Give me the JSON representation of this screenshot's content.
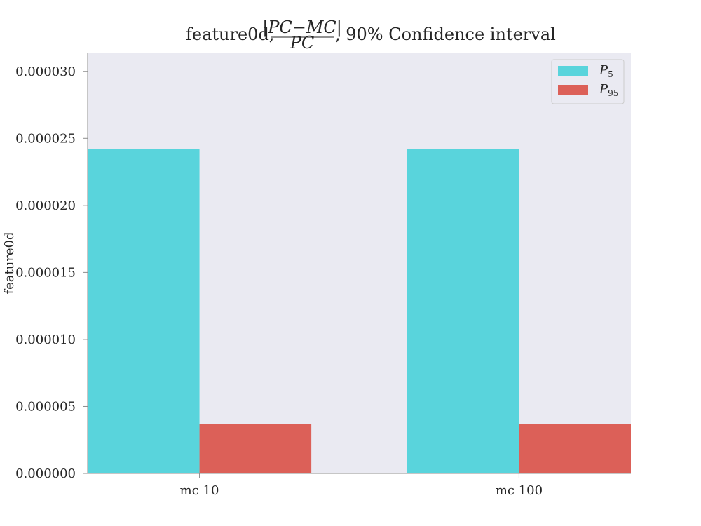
{
  "chart_data": {
    "type": "bar",
    "title": "feature0d, |PC−MC| / PC, 90% Confidence interval",
    "title_parts": {
      "prefix": "feature0d,",
      "numerator": "|PC−MC|",
      "denominator": "PC",
      "suffix": ", 90% Confidence interval"
    },
    "xlabel": "",
    "ylabel": "feature0d",
    "categories": [
      "mc 10",
      "mc 100"
    ],
    "series": [
      {
        "name": "P5",
        "name_main": "P",
        "name_sub": "5",
        "color": "#59d4dc",
        "values": [
          2.42e-05,
          2.42e-05
        ]
      },
      {
        "name": "P95",
        "name_main": "P",
        "name_sub": "95",
        "color": "#dc6058",
        "values": [
          3.7e-06,
          3.7e-06
        ]
      }
    ],
    "ylim": [
      0,
      3.14e-05
    ],
    "yticks": [
      0,
      5e-06,
      1e-05,
      1.5e-05,
      2e-05,
      2.5e-05,
      3e-05
    ],
    "ytick_labels": [
      "0.000000",
      "0.000005",
      "0.000010",
      "0.000015",
      "0.000020",
      "0.000025",
      "0.000030"
    ],
    "grid": false,
    "legend": "top-right",
    "background": "#eaeaf2"
  }
}
